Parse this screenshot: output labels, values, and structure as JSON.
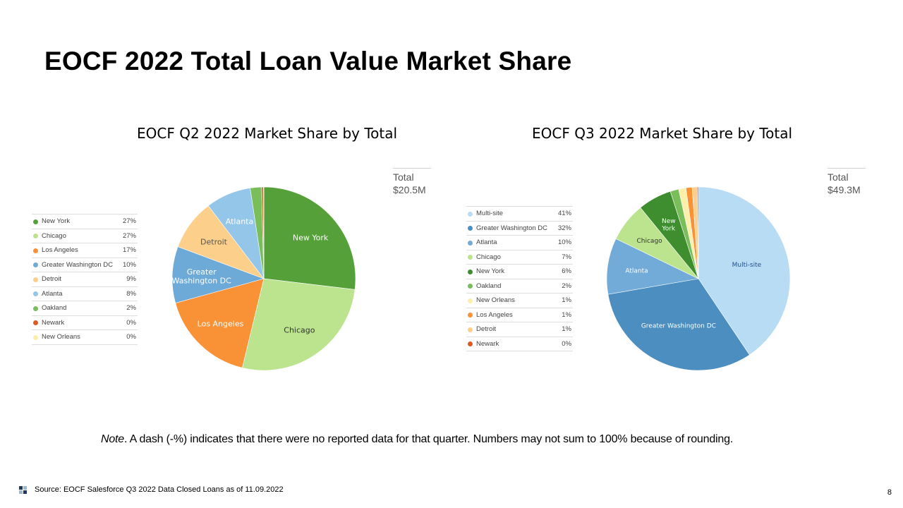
{
  "slide": {
    "title": "EOCF 2022 Total Loan Value Market Share",
    "note_lead": "Note",
    "note_text": ". A dash (-%) indicates that there were no reported data for that quarter. Numbers may not sum to 100% because of rounding.",
    "source": "Source: EOCF Salesforce Q3 2022 Data Closed Loans as of 11.09.2022",
    "page_number": "8"
  },
  "chart_data": [
    {
      "type": "pie",
      "title": "EOCF Q2 2022 Market Share by Total",
      "total_label": "Total",
      "total_value": "$20.5M",
      "slices": [
        {
          "name": "New York",
          "value": 27,
          "pct": "27%",
          "color": "#56A03A",
          "label": "New York",
          "label_color": "#ffffff"
        },
        {
          "name": "Chicago",
          "value": 27,
          "pct": "27%",
          "color": "#BCE38E",
          "label": "Chicago",
          "label_color": "#333333"
        },
        {
          "name": "Los Angeles",
          "value": 17,
          "pct": "17%",
          "color": "#F99136",
          "label": "Los Angeles",
          "label_color": "#ffffff"
        },
        {
          "name": "Greater Washington DC",
          "value": 10,
          "pct": "10%",
          "color": "#6EAAD8",
          "label": "Greater Washington DC",
          "label_lines": [
            "Greater",
            "Washington DC"
          ],
          "label_color": "#ffffff"
        },
        {
          "name": "Detroit",
          "value": 9,
          "pct": "9%",
          "color": "#FCD08A",
          "label": "Detroit",
          "label_color": "#555555"
        },
        {
          "name": "Atlanta",
          "value": 8,
          "pct": "8%",
          "color": "#93C6E8",
          "label": "Atlanta",
          "label_color": "#ffffff"
        },
        {
          "name": "Oakland",
          "value": 2,
          "pct": "2%",
          "color": "#79BE5A",
          "label": "",
          "label_color": "#ffffff"
        },
        {
          "name": "Newark",
          "value": 0.3,
          "pct": "0%",
          "color": "#DC5B24",
          "label": "",
          "label_color": "#ffffff"
        },
        {
          "name": "New Orleans",
          "value": 0.1,
          "pct": "0%",
          "color": "#FBEFA9",
          "label": "",
          "label_color": "#ffffff"
        }
      ]
    },
    {
      "type": "pie",
      "title": "EOCF Q3 2022 Market Share by Total",
      "total_label": "Total",
      "total_value": "$49.3M",
      "slices": [
        {
          "name": "Multi-site",
          "value": 41,
          "pct": "41%",
          "color": "#B9DCF5",
          "label": "Multi-site",
          "label_color": "#1F4E89"
        },
        {
          "name": "Greater Washington DC",
          "value": 32,
          "pct": "32%",
          "color": "#4C8EC0",
          "label": "Greater Washington DC",
          "label_color": "#ffffff"
        },
        {
          "name": "Atlanta",
          "value": 10,
          "pct": "10%",
          "color": "#73ABD8",
          "label": "Atlanta",
          "label_color": "#ffffff"
        },
        {
          "name": "Chicago",
          "value": 7,
          "pct": "7%",
          "color": "#BCE38E",
          "label": "Chicago",
          "label_color": "#333333"
        },
        {
          "name": "New York",
          "value": 6,
          "pct": "6%",
          "color": "#3E8E2F",
          "label": "New York",
          "label_lines": [
            "New",
            "York"
          ],
          "label_color": "#ffffff"
        },
        {
          "name": "Oakland",
          "value": 1.5,
          "pct": "2%",
          "color": "#79BE5A",
          "label": "",
          "label_color": "#ffffff"
        },
        {
          "name": "New Orleans",
          "value": 1.3,
          "pct": "1%",
          "color": "#FBEFA9",
          "label": "",
          "label_color": "#ffffff"
        },
        {
          "name": "Los Angeles",
          "value": 1.1,
          "pct": "1%",
          "color": "#F99136",
          "label": "",
          "label_color": "#ffffff"
        },
        {
          "name": "Detroit",
          "value": 0.9,
          "pct": "1%",
          "color": "#FCD08A",
          "label": "",
          "label_color": "#ffffff"
        },
        {
          "name": "Newark",
          "value": 0.2,
          "pct": "0%",
          "color": "#DC5B24",
          "label": "",
          "label_color": "#ffffff"
        }
      ]
    }
  ],
  "legends": [
    {
      "rows": [
        {
          "label": "New York",
          "value": "27%",
          "color": "#56A03A"
        },
        {
          "label": "Chicago",
          "value": "27%",
          "color": "#BCE38E"
        },
        {
          "label": "Los Angeles",
          "value": "17%",
          "color": "#F99136"
        },
        {
          "label": "Greater Washington DC",
          "value": "10%",
          "color": "#6EAAD8"
        },
        {
          "label": "Detroit",
          "value": "9%",
          "color": "#FCD08A"
        },
        {
          "label": "Atlanta",
          "value": "8%",
          "color": "#93C6E8"
        },
        {
          "label": "Oakland",
          "value": "2%",
          "color": "#79BE5A"
        },
        {
          "label": "Newark",
          "value": "0%",
          "color": "#DC5B24"
        },
        {
          "label": "New Orleans",
          "value": "0%",
          "color": "#FBEFA9"
        }
      ]
    },
    {
      "rows": [
        {
          "label": "Multi-site",
          "value": "41%",
          "color": "#B9DCF5"
        },
        {
          "label": "Greater Washington DC",
          "value": "32%",
          "color": "#4C8EC0"
        },
        {
          "label": "Atlanta",
          "value": "10%",
          "color": "#73ABD8"
        },
        {
          "label": "Chicago",
          "value": "7%",
          "color": "#BCE38E"
        },
        {
          "label": "New York",
          "value": "6%",
          "color": "#3E8E2F"
        },
        {
          "label": "Oakland",
          "value": "2%",
          "color": "#79BE5A"
        },
        {
          "label": "New Orleans",
          "value": "1%",
          "color": "#FBEFA9"
        },
        {
          "label": "Los Angeles",
          "value": "1%",
          "color": "#F99136"
        },
        {
          "label": "Detroit",
          "value": "1%",
          "color": "#FCD08A"
        },
        {
          "label": "Newark",
          "value": "0%",
          "color": "#DC5B24"
        }
      ]
    }
  ],
  "footer_icon": {
    "colors": [
      "#1F3A5F",
      "#9BB8D3",
      "#9BB8D3",
      "#1F3A5F"
    ],
    "name": "logo-grid-icon"
  }
}
